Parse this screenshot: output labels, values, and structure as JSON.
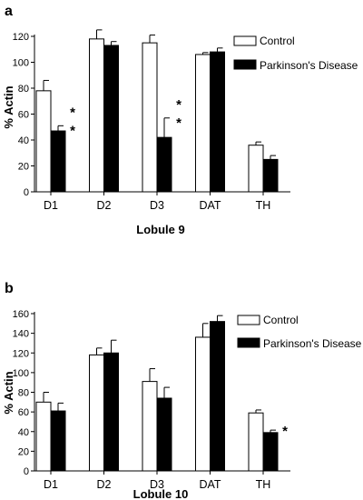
{
  "chart_data": [
    {
      "type": "bar",
      "panel_label": "a",
      "xlabel": "Lobule 9",
      "ylabel": "% Actin",
      "ylim": [
        0,
        120
      ],
      "yticks": [
        0,
        20,
        40,
        60,
        80,
        100,
        120
      ],
      "categories": [
        "D1",
        "D2",
        "D3",
        "DAT",
        "TH"
      ],
      "series": [
        {
          "name": "Control",
          "color": "#ffffff",
          "values": [
            78,
            118,
            115,
            106,
            36
          ],
          "errors": [
            8,
            7,
            6,
            1.5,
            2.5
          ]
        },
        {
          "name": "Parkinson's Disease",
          "color": "#000000",
          "values": [
            47,
            113,
            42,
            108,
            25
          ],
          "errors": [
            4,
            3,
            15,
            3,
            3
          ]
        }
      ],
      "annotations": [
        {
          "category": "D1",
          "series": 1,
          "marks": [
            "*",
            "*"
          ]
        },
        {
          "category": "D3",
          "series": 1,
          "marks": [
            "*",
            "*"
          ]
        }
      ],
      "legend_position": "top-right"
    },
    {
      "type": "bar",
      "panel_label": "b",
      "xlabel": "Lobule 10",
      "ylabel": "% Actin",
      "ylim": [
        0,
        160
      ],
      "yticks": [
        0,
        20,
        40,
        60,
        80,
        100,
        120,
        140,
        160
      ],
      "categories": [
        "D1",
        "D2",
        "D3",
        "DAT",
        "TH"
      ],
      "series": [
        {
          "name": "Control",
          "color": "#ffffff",
          "values": [
            70,
            118,
            91,
            136,
            59
          ],
          "errors": [
            10,
            7,
            13,
            14,
            3
          ]
        },
        {
          "name": "Parkinson's Disease",
          "color": "#000000",
          "values": [
            61,
            120,
            74,
            152,
            39
          ],
          "errors": [
            8,
            13,
            11,
            6,
            2.5
          ]
        }
      ],
      "annotations": [
        {
          "category": "TH",
          "series": 1,
          "marks": [
            "*"
          ]
        }
      ],
      "legend_position": "top-right"
    }
  ]
}
